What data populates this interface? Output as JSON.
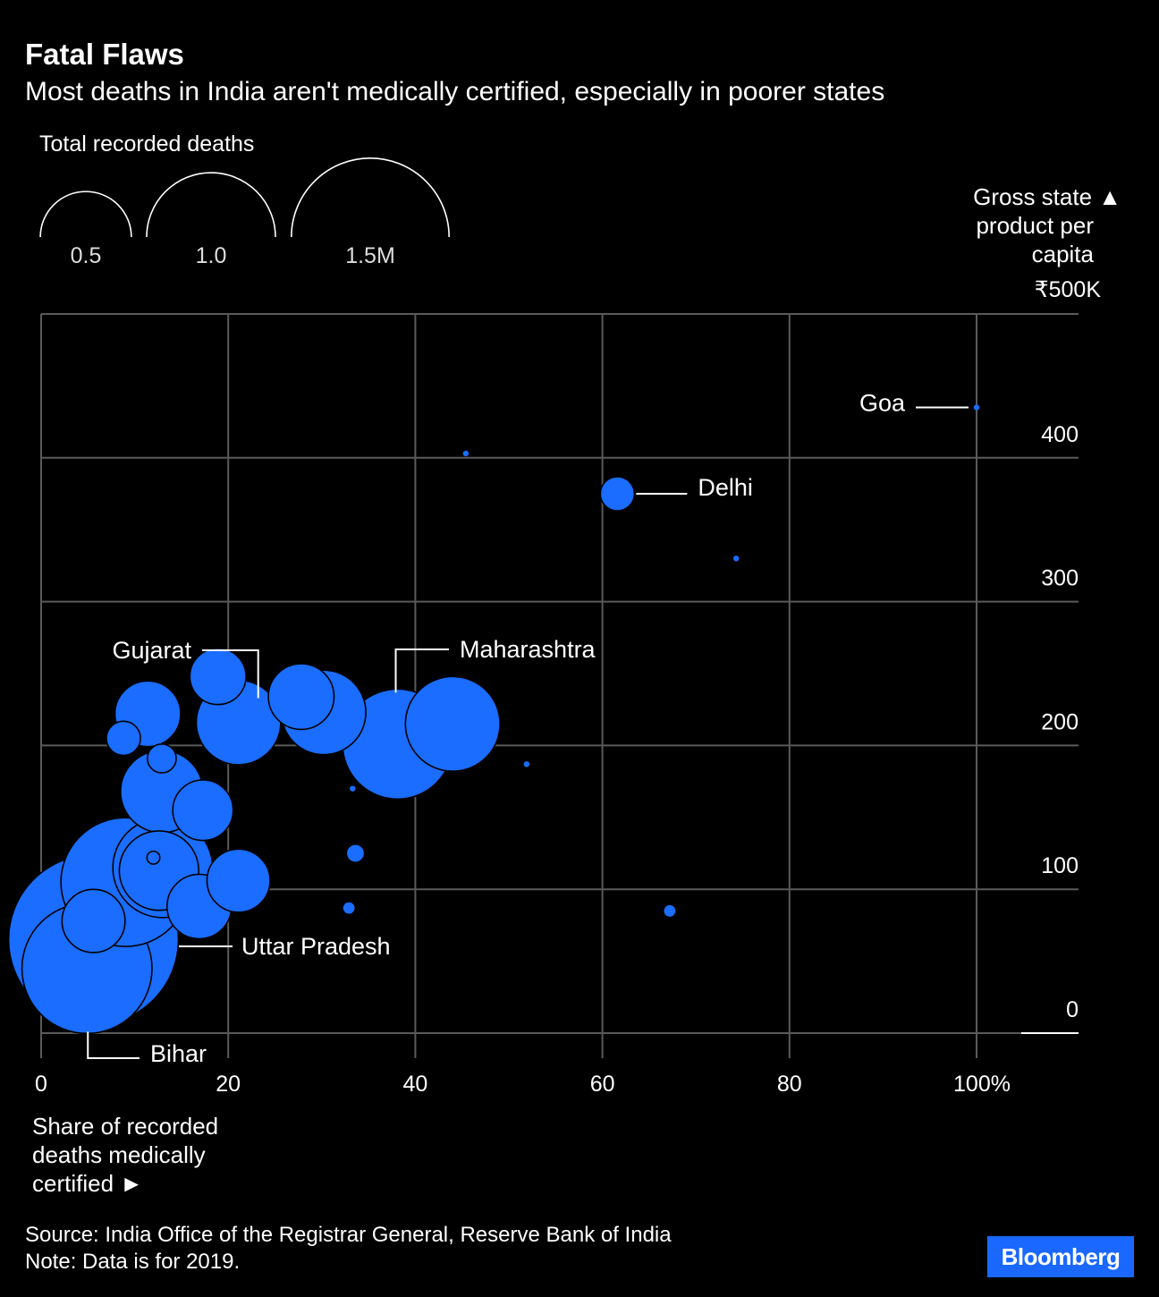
{
  "title": "Fatal Flaws",
  "subtitle": "Most deaths in India aren't medically certified, especially in poorer states",
  "footer": {
    "source": "Source: India Office of the Registrar General, Reserve Bank of India",
    "note": "Note: Data is for 2019."
  },
  "brand": {
    "name": "Bloomberg",
    "color": "#1a68ff"
  },
  "colors": {
    "bubble": "#1a6dff",
    "grid": "#5a5a5a",
    "background": "#000000"
  },
  "chart_data": {
    "type": "scatter",
    "bubble_size_legend": {
      "title": "Total recorded deaths",
      "values": [
        0.5,
        1.0,
        1.5
      ],
      "labels": [
        "0.5",
        "1.0",
        "1.5M"
      ]
    },
    "x_axis": {
      "label_lines": [
        "Share of recorded",
        "deaths medically",
        "certified ►"
      ],
      "ticks": [
        0,
        20,
        40,
        60,
        80,
        100
      ],
      "tick_labels": [
        "0",
        "20",
        "40",
        "60",
        "80",
        "100%"
      ],
      "range": [
        0,
        110
      ]
    },
    "y_axis": {
      "label_lines": [
        "Gross state ▲",
        "product per",
        "capita"
      ],
      "ticks": [
        0,
        100,
        200,
        300,
        400,
        500
      ],
      "tick_labels": [
        "0",
        "100",
        "200",
        "300",
        "400",
        "₹500K"
      ],
      "range": [
        0,
        500
      ]
    },
    "grid": true,
    "points": [
      {
        "x": 4.9,
        "y": 45,
        "size": 1.02,
        "label": "Bihar"
      },
      {
        "x": 5.6,
        "y": 65,
        "size": 1.74,
        "label": "Uttar Pradesh"
      },
      {
        "x": 9.0,
        "y": 105,
        "size": 1.0
      },
      {
        "x": 13.0,
        "y": 115,
        "size": 0.6
      },
      {
        "x": 12.6,
        "y": 113,
        "size": 0.38
      },
      {
        "x": 12.0,
        "y": 122,
        "size": 0.01
      },
      {
        "x": 5.6,
        "y": 78,
        "size": 0.24
      },
      {
        "x": 16.9,
        "y": 88,
        "size": 0.25
      },
      {
        "x": 21.1,
        "y": 106,
        "size": 0.24
      },
      {
        "x": 12.9,
        "y": 168,
        "size": 0.41
      },
      {
        "x": 17.3,
        "y": 155,
        "size": 0.22
      },
      {
        "x": 12.9,
        "y": 191,
        "size": 0.05
      },
      {
        "x": 8.8,
        "y": 205,
        "size": 0.07
      },
      {
        "x": 11.4,
        "y": 222,
        "size": 0.26
      },
      {
        "x": 21.1,
        "y": 216,
        "size": 0.43,
        "label": "Gujarat"
      },
      {
        "x": 18.9,
        "y": 248,
        "size": 0.19
      },
      {
        "x": 30.2,
        "y": 223,
        "size": 0.43
      },
      {
        "x": 27.8,
        "y": 234,
        "size": 0.26
      },
      {
        "x": 38.1,
        "y": 201,
        "size": 0.73,
        "label": "Maharashtra"
      },
      {
        "x": 44.0,
        "y": 215,
        "size": 0.54
      },
      {
        "x": 33.6,
        "y": 125,
        "size": 0.02
      },
      {
        "x": 32.9,
        "y": 87,
        "size": 0.01
      },
      {
        "x": 33.3,
        "y": 170,
        "size": 0.001
      },
      {
        "x": 51.9,
        "y": 187,
        "size": 0.001
      },
      {
        "x": 67.2,
        "y": 85,
        "size": 0.01
      },
      {
        "x": 45.4,
        "y": 403,
        "size": 0.0005
      },
      {
        "x": 61.6,
        "y": 375,
        "size": 0.07,
        "label": "Delhi"
      },
      {
        "x": 74.3,
        "y": 330,
        "size": 0.001
      },
      {
        "x": 100.0,
        "y": 435,
        "size": 0.0012,
        "label": "Goa"
      }
    ]
  }
}
